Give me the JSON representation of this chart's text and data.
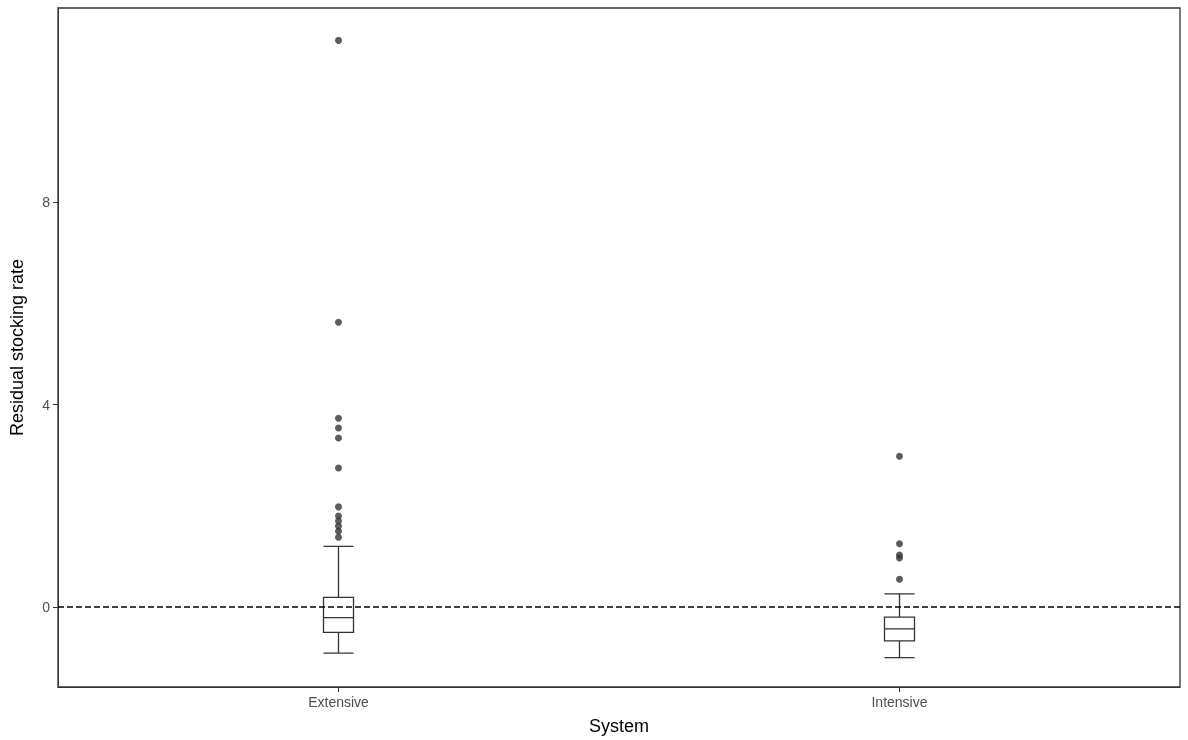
{
  "chart_data": {
    "type": "box",
    "xlabel": "System",
    "ylabel": "Residual stocking rate",
    "categories": [
      "Extensive",
      "Intensive"
    ],
    "boxes": [
      {
        "low": -0.91,
        "q1": -0.5,
        "median": -0.21,
        "q3": 0.19,
        "high": 1.2,
        "outliers": [
          1.38,
          1.5,
          1.6,
          1.7,
          1.8,
          1.98,
          2.75,
          3.34,
          3.54,
          3.73,
          5.63,
          11.2
        ]
      },
      {
        "low": -1.0,
        "q1": -0.67,
        "median": -0.43,
        "q3": -0.2,
        "high": 0.26,
        "outliers": [
          0.55,
          0.97,
          1.03,
          1.25,
          2.98
        ]
      }
    ],
    "color": "#333333",
    "ylim": [
      -1.58,
      11.84
    ],
    "yticks": [
      0,
      4,
      8
    ],
    "grid": false,
    "ref_lines": [
      {
        "axis": "y",
        "value": 0,
        "line_style": "dashed",
        "color": "#000000"
      }
    ]
  }
}
